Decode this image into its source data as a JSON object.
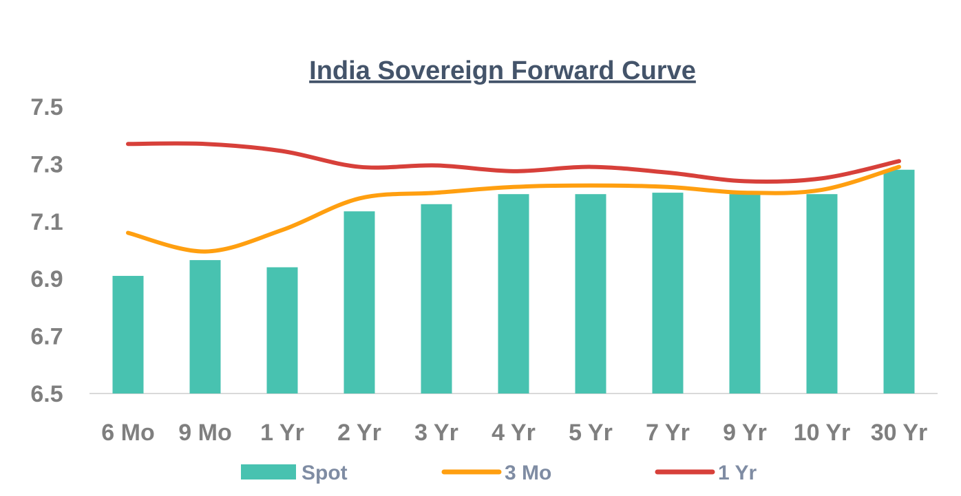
{
  "chart_data": {
    "type": "bar",
    "title": "India Sovereign Forward Curve",
    "xlabel": "",
    "ylabel": "",
    "categories": [
      "6 Mo",
      "9 Mo",
      "1 Yr",
      "2 Yr",
      "3 Yr",
      "4 Yr",
      "5 Yr",
      "7 Yr",
      "9 Yr",
      "10 Yr",
      "30 Yr"
    ],
    "ylim": [
      6.5,
      7.5
    ],
    "yticks": [
      "6.5",
      "6.7",
      "6.9",
      "7.1",
      "7.3",
      "7.5"
    ],
    "grid": false,
    "legend_position": "bottom",
    "series": [
      {
        "name": "Spot",
        "kind": "bar",
        "color": "#48c2b0",
        "values": [
          6.91,
          6.965,
          6.94,
          7.135,
          7.16,
          7.195,
          7.195,
          7.2,
          7.195,
          7.195,
          7.28
        ]
      },
      {
        "name": "3 Mo",
        "kind": "line",
        "color": "#ff9f10",
        "values": [
          7.06,
          6.995,
          7.07,
          7.18,
          7.2,
          7.22,
          7.225,
          7.22,
          7.2,
          7.21,
          7.29
        ]
      },
      {
        "name": "1 Yr",
        "kind": "line",
        "color": "#d7403a",
        "values": [
          7.37,
          7.37,
          7.345,
          7.29,
          7.295,
          7.275,
          7.29,
          7.27,
          7.24,
          7.25,
          7.31
        ]
      }
    ]
  }
}
